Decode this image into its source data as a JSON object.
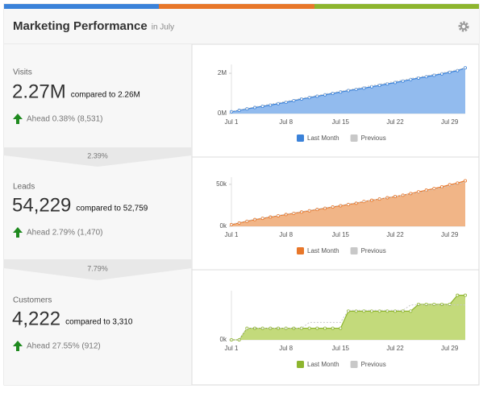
{
  "header": {
    "title": "Marketing Performance",
    "subtitle": "in July"
  },
  "metrics": [
    {
      "label": "Visits",
      "value": "2.27M",
      "comparison": "compared to 2.26M",
      "change": "Ahead 0.38% (8,531)"
    },
    {
      "label": "Leads",
      "value": "54,229",
      "comparison": "compared to 52,759",
      "change": "Ahead 2.79% (1,470)"
    },
    {
      "label": "Customers",
      "value": "4,222",
      "comparison": "compared to 3,310",
      "change": "Ahead 27.55% (912)"
    }
  ],
  "funnel": [
    "2.39%",
    "7.79%"
  ],
  "chart_data": [
    {
      "type": "area",
      "categories": [
        "Jul 1",
        null,
        null,
        null,
        null,
        null,
        null,
        "Jul 8",
        null,
        null,
        null,
        null,
        null,
        null,
        "Jul 15",
        null,
        null,
        null,
        null,
        null,
        null,
        "Jul 22",
        null,
        null,
        null,
        null,
        null,
        null,
        "Jul 29",
        null,
        null
      ],
      "series": [
        {
          "name": "Last Month",
          "color": "#3b82d9",
          "values": [
            90000,
            160000,
            230000,
            300000,
            360000,
            420000,
            490000,
            560000,
            640000,
            720000,
            790000,
            860000,
            930000,
            1000000,
            1070000,
            1140000,
            1200000,
            1260000,
            1330000,
            1400000,
            1470000,
            1540000,
            1610000,
            1690000,
            1760000,
            1830000,
            1900000,
            1970000,
            2050000,
            2130000,
            2270000
          ]
        },
        {
          "name": "Previous",
          "color": "#c8c8c8",
          "values": [
            100000,
            180000,
            260000,
            330000,
            400000,
            470000,
            540000,
            610000,
            680000,
            760000,
            830000,
            900000,
            970000,
            1040000,
            1110000,
            1180000,
            1250000,
            1320000,
            1390000,
            1460000,
            1530000,
            1600000,
            1670000,
            1740000,
            1810000,
            1880000,
            1950000,
            2020000,
            2100000,
            2180000,
            2260000
          ]
        }
      ],
      "ylim": [
        0,
        2360000
      ],
      "yticks": [
        {
          "value": 0,
          "label": "0M"
        },
        {
          "value": 2000000,
          "label": "2M"
        }
      ]
    },
    {
      "type": "area",
      "categories": [
        "Jul 1",
        null,
        null,
        null,
        null,
        null,
        null,
        "Jul 8",
        null,
        null,
        null,
        null,
        null,
        null,
        "Jul 15",
        null,
        null,
        null,
        null,
        null,
        null,
        "Jul 22",
        null,
        null,
        null,
        null,
        null,
        null,
        "Jul 29",
        null,
        null
      ],
      "series": [
        {
          "name": "Last Month",
          "color": "#e8772a",
          "values": [
            2000,
            4000,
            6000,
            8000,
            9500,
            11000,
            12500,
            14000,
            15500,
            17000,
            18500,
            20000,
            21500,
            23000,
            24500,
            26000,
            27500,
            29500,
            31000,
            32500,
            34000,
            35500,
            37000,
            39000,
            41000,
            43000,
            45000,
            47000,
            49500,
            51500,
            54229
          ]
        },
        {
          "name": "Previous",
          "color": "#c8c8c8",
          "values": [
            2500,
            4500,
            6500,
            8500,
            10000,
            11500,
            13000,
            14500,
            16000,
            17500,
            19000,
            20500,
            22000,
            23500,
            25000,
            26500,
            28000,
            29500,
            31000,
            32500,
            34000,
            35500,
            37000,
            38500,
            40000,
            42000,
            44000,
            46000,
            48000,
            50500,
            52759
          ]
        }
      ],
      "ylim": [
        0,
        56600
      ],
      "yticks": [
        {
          "value": 0,
          "label": "0k"
        },
        {
          "value": 50000,
          "label": "50k"
        }
      ]
    },
    {
      "type": "area",
      "categories": [
        "Jul 1",
        null,
        null,
        null,
        null,
        null,
        null,
        "Jul 8",
        null,
        null,
        null,
        null,
        null,
        null,
        "Jul 15",
        null,
        null,
        null,
        null,
        null,
        null,
        "Jul 22",
        null,
        null,
        null,
        null,
        null,
        null,
        "Jul 29",
        null,
        null
      ],
      "series": [
        {
          "name": "Last Month",
          "color": "#8db52e",
          "values": [
            0,
            0,
            1100,
            1100,
            1100,
            1100,
            1100,
            1100,
            1100,
            1100,
            1100,
            1100,
            1100,
            1100,
            1100,
            2720,
            2720,
            2720,
            2720,
            2720,
            2720,
            2720,
            2720,
            2720,
            3360,
            3360,
            3360,
            3360,
            3360,
            4222,
            4222
          ]
        },
        {
          "name": "Previous",
          "color": "#c8c8c8",
          "values": [
            0,
            0,
            1100,
            1100,
            1100,
            1100,
            1100,
            1100,
            1100,
            1100,
            1650,
            1650,
            1650,
            1650,
            1650,
            2800,
            2800,
            2800,
            2800,
            2800,
            2800,
            2800,
            2800,
            3310,
            3310,
            3310,
            3310,
            3310,
            3310,
            3310,
            3310
          ]
        }
      ],
      "ylim": [
        0,
        4500
      ],
      "yticks": [
        {
          "value": 0,
          "label": "0k"
        }
      ]
    }
  ]
}
